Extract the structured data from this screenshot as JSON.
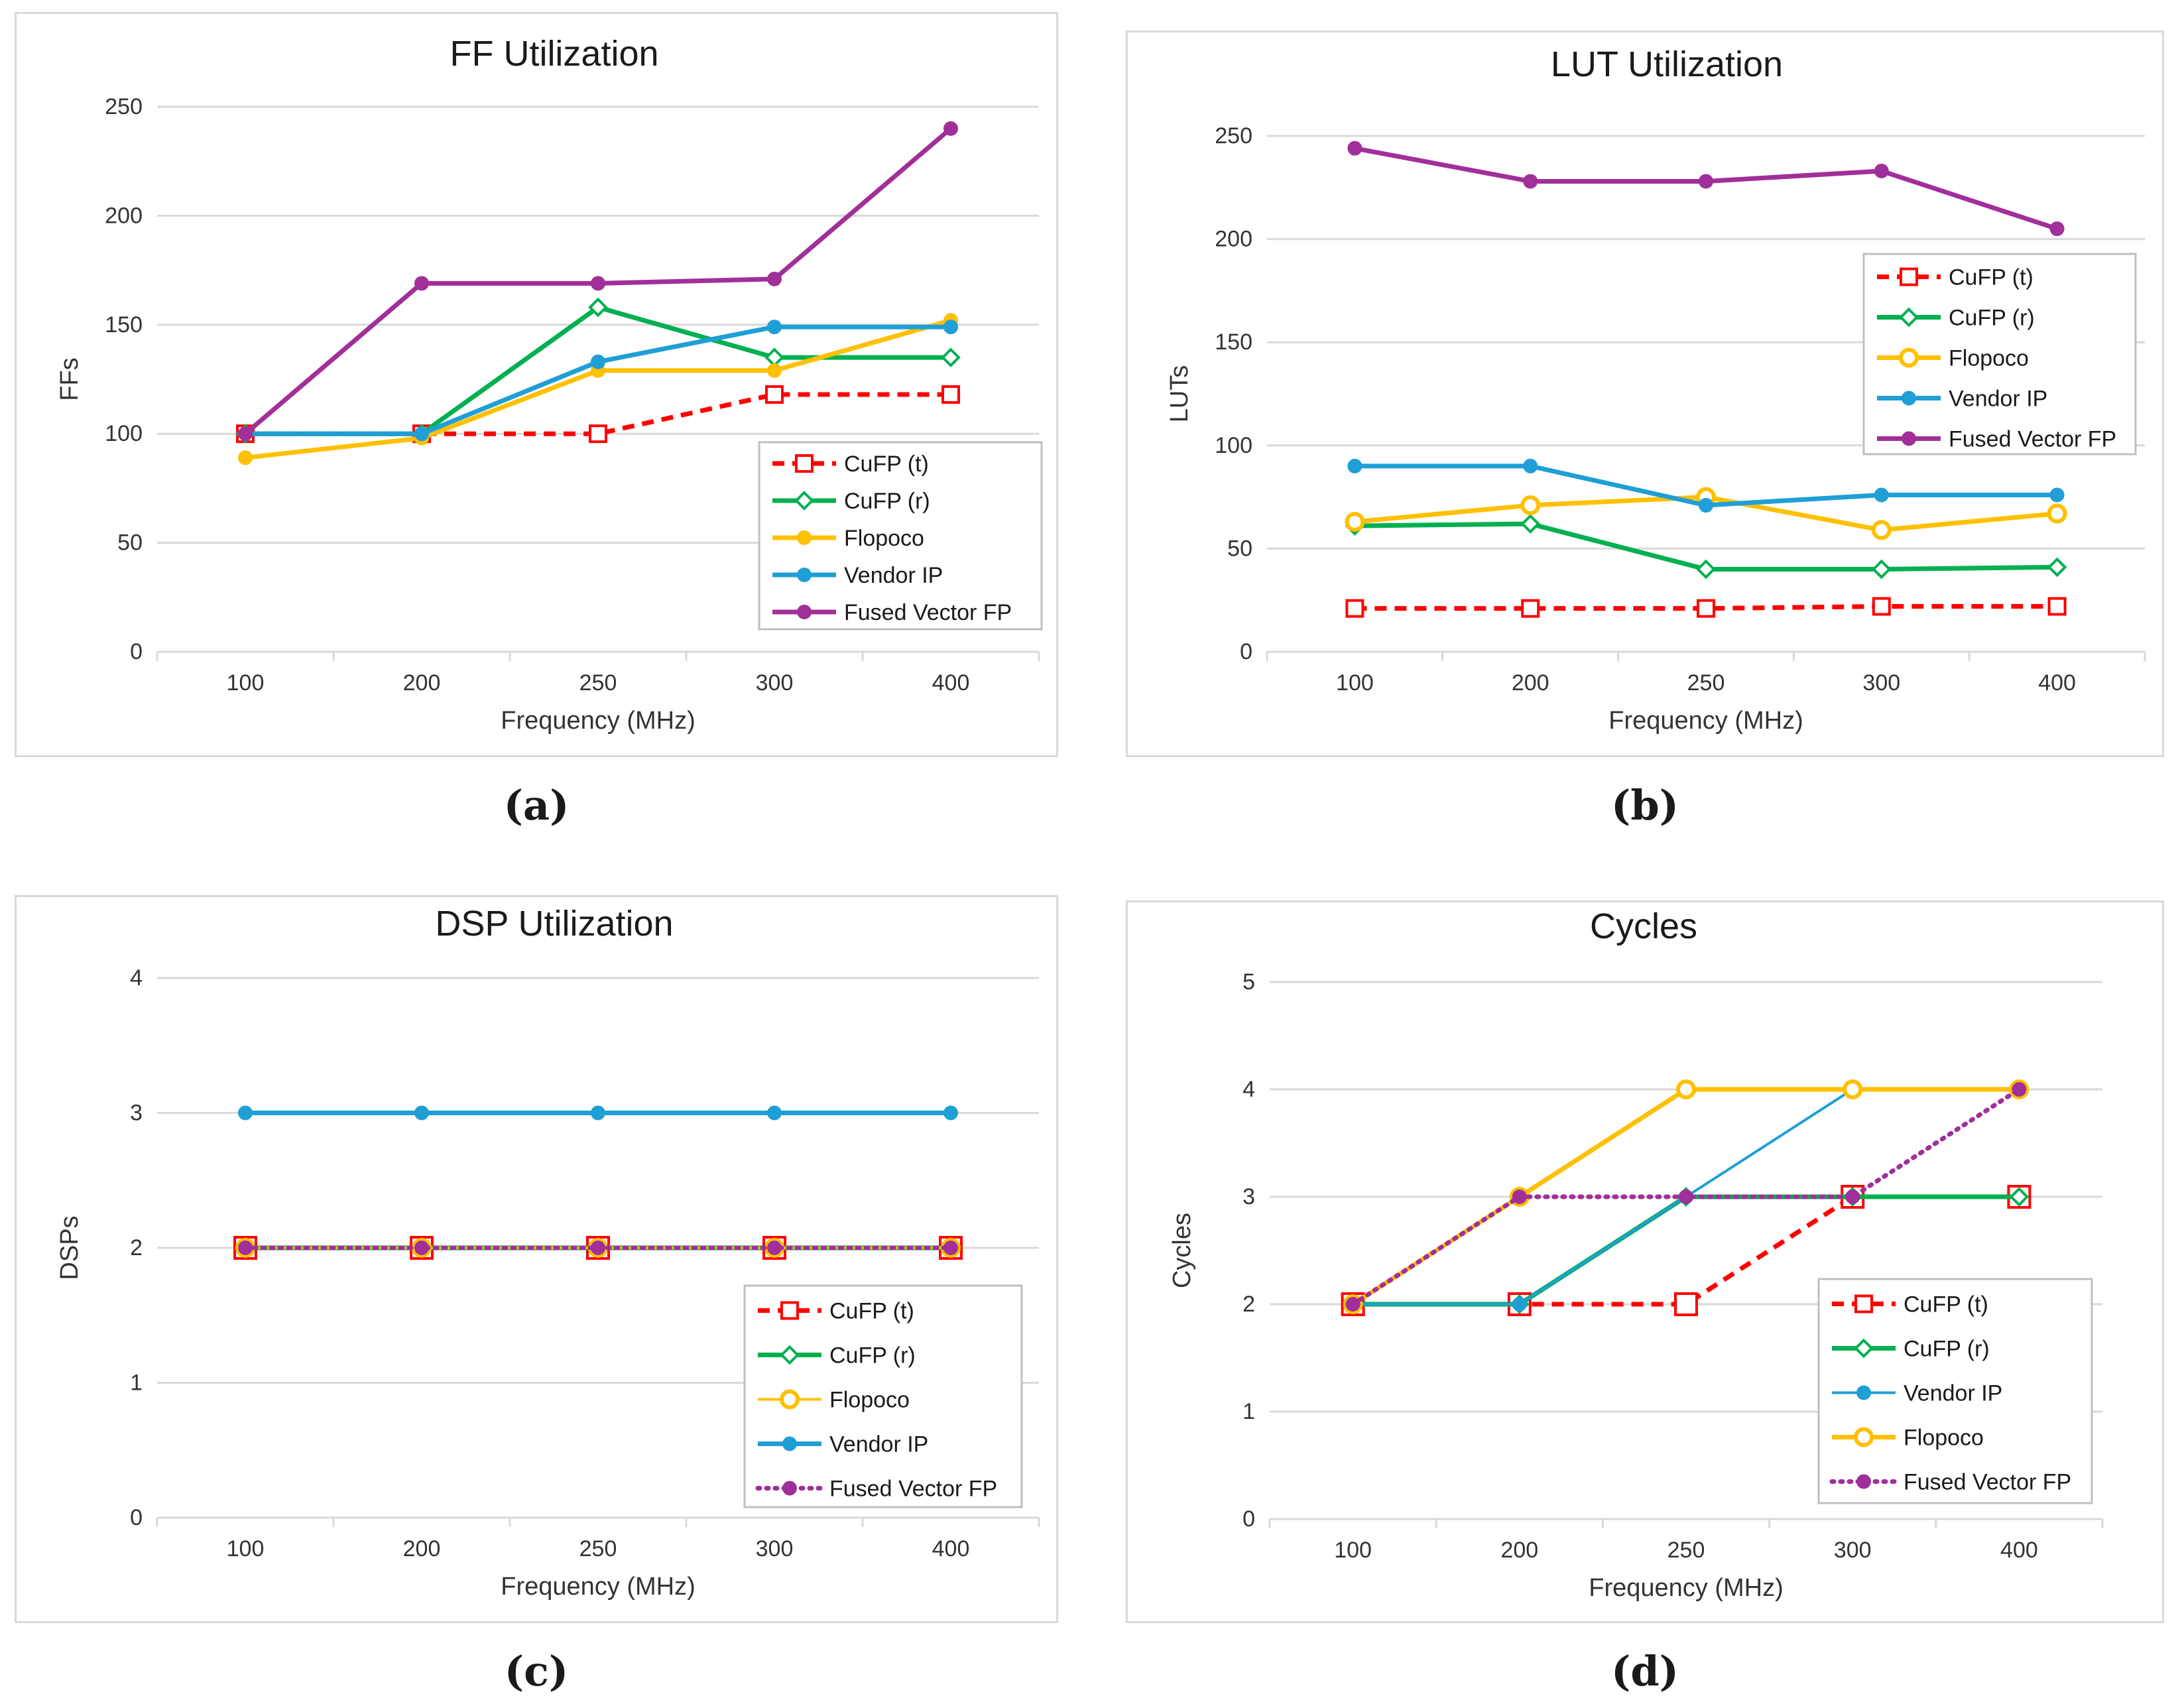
{
  "chart_data": [
    {
      "id": "a",
      "type": "line",
      "title": "FF Utilization",
      "xlabel": "Frequency (MHz)",
      "ylabel": "FFs",
      "categories": [
        "100",
        "200",
        "250",
        "300",
        "400"
      ],
      "ylim": [
        0,
        250
      ],
      "yticks": [
        0,
        50,
        100,
        150,
        200,
        250
      ],
      "legend_position": "bottom-right",
      "series": [
        {
          "name": "CuFP (t)",
          "values": [
            100,
            100,
            100,
            118,
            118
          ],
          "color": "#ff0000",
          "dash": "dash",
          "marker": "square-open"
        },
        {
          "name": "CuFP (r)",
          "values": [
            100,
            100,
            158,
            135,
            135
          ],
          "color": "#00b050",
          "dash": "solid",
          "marker": "diamond-open"
        },
        {
          "name": "Flopoco",
          "values": [
            89,
            98,
            129,
            129,
            152
          ],
          "color": "#ffc000",
          "dash": "solid",
          "marker": "circle"
        },
        {
          "name": "Vendor IP",
          "values": [
            100,
            100,
            133,
            149,
            149
          ],
          "color": "#1f9fd6",
          "dash": "solid",
          "marker": "circle"
        },
        {
          "name": "Fused Vector FP",
          "values": [
            100,
            169,
            169,
            171,
            240
          ],
          "color": "#a12f9a",
          "dash": "solid",
          "marker": "circle"
        }
      ],
      "caption": "(a)"
    },
    {
      "id": "b",
      "type": "line",
      "title": "LUT Utilization",
      "xlabel": "Frequency (MHz)",
      "ylabel": "LUTs",
      "categories": [
        "100",
        "200",
        "250",
        "300",
        "400"
      ],
      "ylim": [
        0,
        250
      ],
      "yticks": [
        0,
        50,
        100,
        150,
        200,
        250
      ],
      "legend_position": "top-right",
      "series": [
        {
          "name": "CuFP (t)",
          "values": [
            21,
            21,
            21,
            22,
            22
          ],
          "color": "#ff0000",
          "dash": "dash",
          "marker": "square-open"
        },
        {
          "name": "CuFP (r)",
          "values": [
            61,
            62,
            40,
            40,
            41
          ],
          "color": "#00b050",
          "dash": "solid",
          "marker": "diamond-open"
        },
        {
          "name": "Flopoco",
          "values": [
            63,
            71,
            75,
            59,
            67
          ],
          "color": "#ffc000",
          "dash": "solid",
          "marker": "circle-open"
        },
        {
          "name": "Vendor IP",
          "values": [
            90,
            90,
            71,
            76,
            76
          ],
          "color": "#1f9fd6",
          "dash": "solid",
          "marker": "circle"
        },
        {
          "name": "Fused Vector FP",
          "values": [
            244,
            228,
            228,
            233,
            205
          ],
          "color": "#a12f9a",
          "dash": "solid",
          "marker": "circle"
        }
      ],
      "caption": "(b)"
    },
    {
      "id": "c",
      "type": "line",
      "title": "DSP Utilization",
      "xlabel": "Frequency (MHz)",
      "ylabel": "DSPs",
      "categories": [
        "100",
        "200",
        "250",
        "300",
        "400"
      ],
      "ylim": [
        0,
        4
      ],
      "yticks": [
        0,
        1,
        2,
        3,
        4
      ],
      "legend_position": "bottom-right",
      "series": [
        {
          "name": "CuFP (t)",
          "values": [
            2,
            2,
            2,
            2,
            2
          ],
          "color": "#ff0000",
          "dash": "dash",
          "marker": "square-open"
        },
        {
          "name": "CuFP (r)",
          "values": [
            2,
            2,
            2,
            2,
            2
          ],
          "color": "#00b050",
          "dash": "solid",
          "marker": "diamond-open"
        },
        {
          "name": "Flopoco",
          "values": [
            2,
            2,
            2,
            2,
            2
          ],
          "color": "#ffc000",
          "dash": "solid-thin",
          "marker": "circle-open"
        },
        {
          "name": "Vendor IP",
          "values": [
            3,
            3,
            3,
            3,
            3
          ],
          "color": "#1f9fd6",
          "dash": "solid",
          "marker": "circle"
        },
        {
          "name": "Fused Vector FP",
          "values": [
            2,
            2,
            2,
            2,
            2
          ],
          "color": "#a12f9a",
          "dash": "dot",
          "marker": "circle"
        }
      ],
      "caption": "(c)"
    },
    {
      "id": "d",
      "type": "line",
      "title": "Cycles",
      "xlabel": "Frequency (MHz)",
      "ylabel": "Cycles",
      "categories": [
        "100",
        "200",
        "250",
        "300",
        "400"
      ],
      "ylim": [
        0,
        5
      ],
      "yticks": [
        0,
        1,
        2,
        3,
        4,
        5
      ],
      "legend_position": "bottom-right",
      "series": [
        {
          "name": "CuFP (t)",
          "values": [
            2,
            2,
            2,
            3,
            3
          ],
          "color": "#ff0000",
          "dash": "dash",
          "marker": "square-open"
        },
        {
          "name": "CuFP (r)",
          "values": [
            2,
            2,
            3,
            3,
            3
          ],
          "color": "#00b050",
          "dash": "solid",
          "marker": "diamond-open"
        },
        {
          "name": "Vendor IP",
          "values": [
            2,
            2,
            3,
            4,
            4
          ],
          "color": "#1f9fd6",
          "dash": "solid-thin",
          "marker": "circle"
        },
        {
          "name": "Flopoco",
          "values": [
            2,
            3,
            4,
            4,
            4
          ],
          "color": "#ffc000",
          "dash": "solid",
          "marker": "circle-open"
        },
        {
          "name": "Fused Vector FP",
          "values": [
            2,
            3,
            3,
            3,
            4
          ],
          "color": "#a12f9a",
          "dash": "dot",
          "marker": "circle"
        }
      ],
      "caption": "(d)"
    }
  ]
}
